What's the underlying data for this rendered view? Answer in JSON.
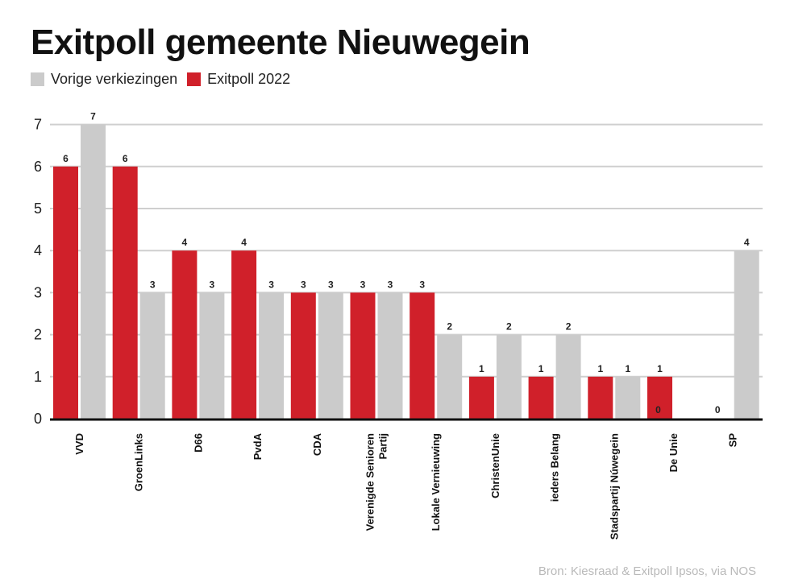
{
  "title": "Exitpoll gemeente Nieuwegein",
  "legend": {
    "previous": "Vorige verkiezingen",
    "exitpoll": "Exitpoll 2022"
  },
  "colors": {
    "exitpoll": "#d0202a",
    "previous": "#cbcbcb"
  },
  "source": "Bron: Kiesraad & Exitpoll Ipsos, via NOS",
  "chart_data": {
    "type": "bar",
    "title": "Exitpoll gemeente Nieuwegein",
    "categories": [
      "VVD",
      "GroenLinks",
      "D66",
      "PvdA",
      "CDA",
      "Verenigde Senioren Partij",
      "Lokale Vernieuwing",
      "ChristenUnie",
      "ieders Belang",
      "Stadspartij Núwegein",
      "De Unie",
      "SP"
    ],
    "category_lines": [
      [
        "VVD"
      ],
      [
        "GroenLinks"
      ],
      [
        "D66"
      ],
      [
        "PvdA"
      ],
      [
        "CDA"
      ],
      [
        "Verenigde Senioren",
        "Partij"
      ],
      [
        "Lokale Vernieuwing"
      ],
      [
        "ChristenUnie"
      ],
      [
        "ieders Belang"
      ],
      [
        "Stadspartij Núwegein"
      ],
      [
        "De Unie"
      ],
      [
        "SP"
      ]
    ],
    "series": [
      {
        "name": "Exitpoll 2022",
        "values": [
          6,
          6,
          4,
          4,
          3,
          3,
          3,
          1,
          1,
          1,
          1,
          null
        ]
      },
      {
        "name": "Vorige verkiezingen",
        "values": [
          7,
          3,
          3,
          3,
          3,
          3,
          2,
          2,
          2,
          1,
          null,
          4
        ]
      }
    ],
    "zero_labels": [
      {
        "category": "De Unie",
        "value": 0
      },
      {
        "category": "SP",
        "value": 0
      }
    ],
    "yticks": [
      0,
      1,
      2,
      3,
      4,
      5,
      6,
      7
    ],
    "ylim": [
      0,
      7
    ],
    "xlabel": "",
    "ylabel": "",
    "grid": true,
    "legend_position": "top-left"
  }
}
